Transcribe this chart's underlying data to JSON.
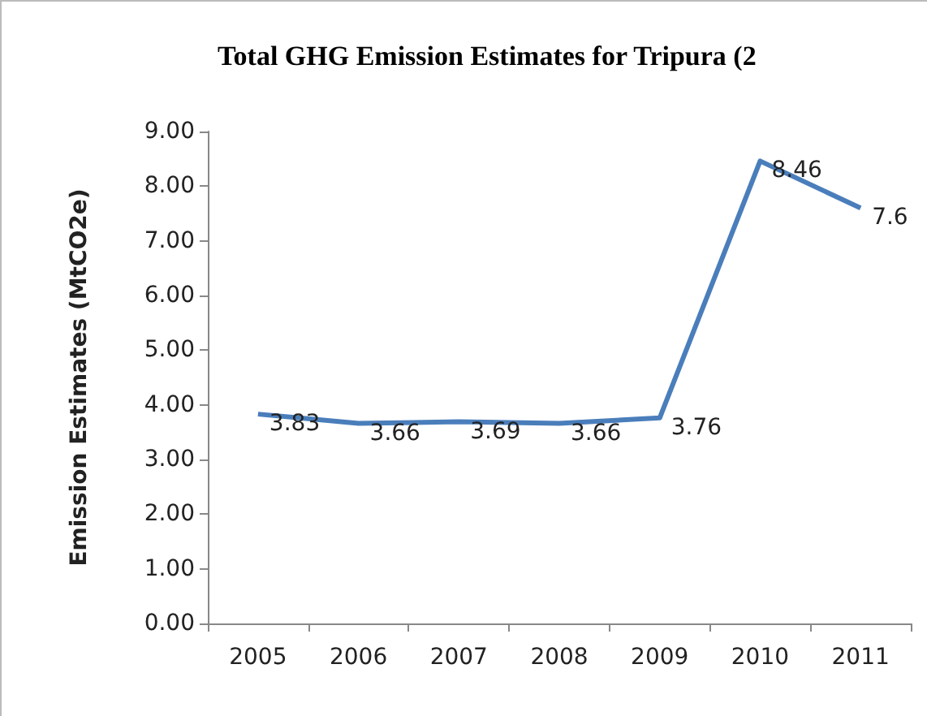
{
  "chart_data": {
    "type": "line",
    "title": "Total GHG Emission Estimates for Tripura (2",
    "ylabel": "Emission Estimates (MtCO2e)",
    "categories": [
      "2005",
      "2006",
      "2007",
      "2008",
      "2009",
      "2010",
      "2011"
    ],
    "series": [
      {
        "color": "#4a7ebb",
        "values": [
          3.83,
          3.66,
          3.69,
          3.66,
          3.76,
          8.46,
          7.6
        ]
      }
    ],
    "ylim": [
      0,
      9
    ],
    "yticks": [
      {
        "value": 0,
        "label": "0.00"
      },
      {
        "value": 1,
        "label": "1.00"
      },
      {
        "value": 2,
        "label": "2.00"
      },
      {
        "value": 3,
        "label": "3.00"
      },
      {
        "value": 4,
        "label": "4.00"
      },
      {
        "value": 5,
        "label": "5.00"
      },
      {
        "value": 6,
        "label": "6.00"
      },
      {
        "value": 7,
        "label": "7.00"
      },
      {
        "value": 8,
        "label": "8.00"
      },
      {
        "value": 9,
        "label": "9.00"
      }
    ],
    "data_labels": true,
    "grid": false,
    "marker": "none",
    "line_style": "solid"
  }
}
